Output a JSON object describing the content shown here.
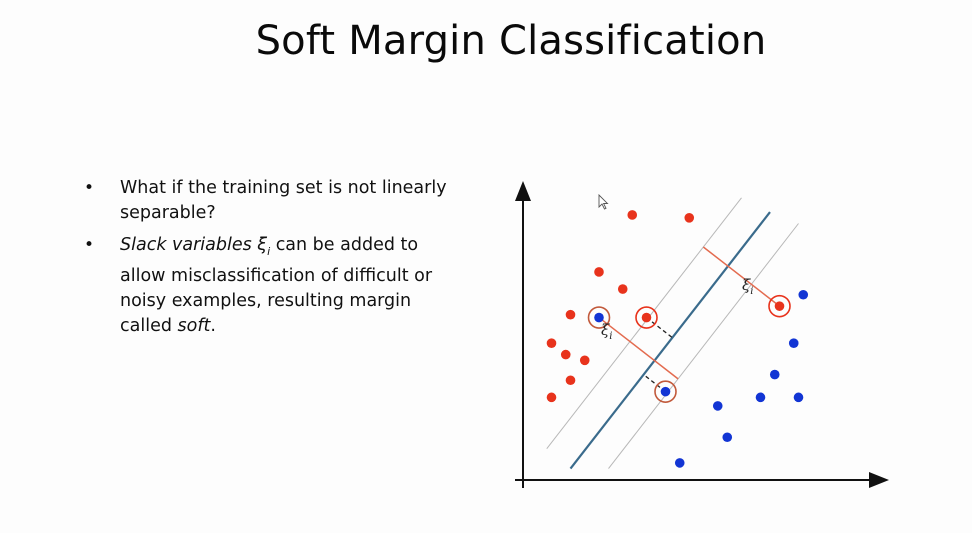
{
  "slide": {
    "title": "Soft Margin Classification",
    "bullets": [
      {
        "text": "What if the training set is not linearly separable?"
      },
      {
        "lead_italic": "Slack variables ",
        "symbol": "ξ",
        "symbol_sub": "i",
        "middle": " can be added to allow misclassification of difficult or noisy examples, resulting margin called ",
        "tail_italic": "soft",
        "end": "."
      }
    ]
  },
  "figure": {
    "slack_label_symbol": "ξ",
    "slack_label_sub": "i",
    "colors": {
      "red_class": "#e8331c",
      "blue_class": "#1235d4",
      "hyperplane": "#3a6b8c",
      "margin": "#b8b8b8",
      "slack_line": "#e36b4f",
      "circle": "#c25a3c"
    }
  },
  "chart_data": {
    "type": "scatter",
    "title": "",
    "xlabel": "",
    "ylabel": "",
    "series": [
      {
        "class": "red",
        "points": [
          [
            1.15,
            9.3
          ],
          [
            1.75,
            9.2
          ],
          [
            0.8,
            7.3
          ],
          [
            1.05,
            6.7
          ],
          [
            0.5,
            5.8
          ],
          [
            0.3,
            4.8
          ],
          [
            0.45,
            4.4
          ],
          [
            0.65,
            4.2
          ],
          [
            0.5,
            3.5
          ],
          [
            0.3,
            2.9
          ]
        ]
      },
      {
        "class": "blue",
        "points": [
          [
            2.95,
            6.5
          ],
          [
            2.85,
            4.8
          ],
          [
            2.65,
            3.7
          ],
          [
            2.05,
            2.6
          ],
          [
            1.65,
            0.6
          ],
          [
            2.15,
            1.5
          ],
          [
            2.9,
            2.9
          ],
          [
            2.5,
            2.9
          ]
        ]
      },
      {
        "class": "red-misclassified",
        "points": [
          [
            1.3,
            5.7
          ],
          [
            2.7,
            6.1
          ]
        ]
      },
      {
        "class": "blue-misclassified",
        "points": [
          [
            0.8,
            5.7
          ],
          [
            1.5,
            3.1
          ]
        ]
      }
    ],
    "decision_boundary": {
      "from": [
        0.5,
        0.4
      ],
      "to": [
        2.6,
        9.4
      ]
    },
    "margins": [
      {
        "from": [
          0.25,
          1.1
        ],
        "to": [
          2.3,
          9.9
        ]
      },
      {
        "from": [
          0.9,
          0.4
        ],
        "to": [
          2.9,
          9.0
        ]
      }
    ],
    "grid": false,
    "legend": "none"
  }
}
